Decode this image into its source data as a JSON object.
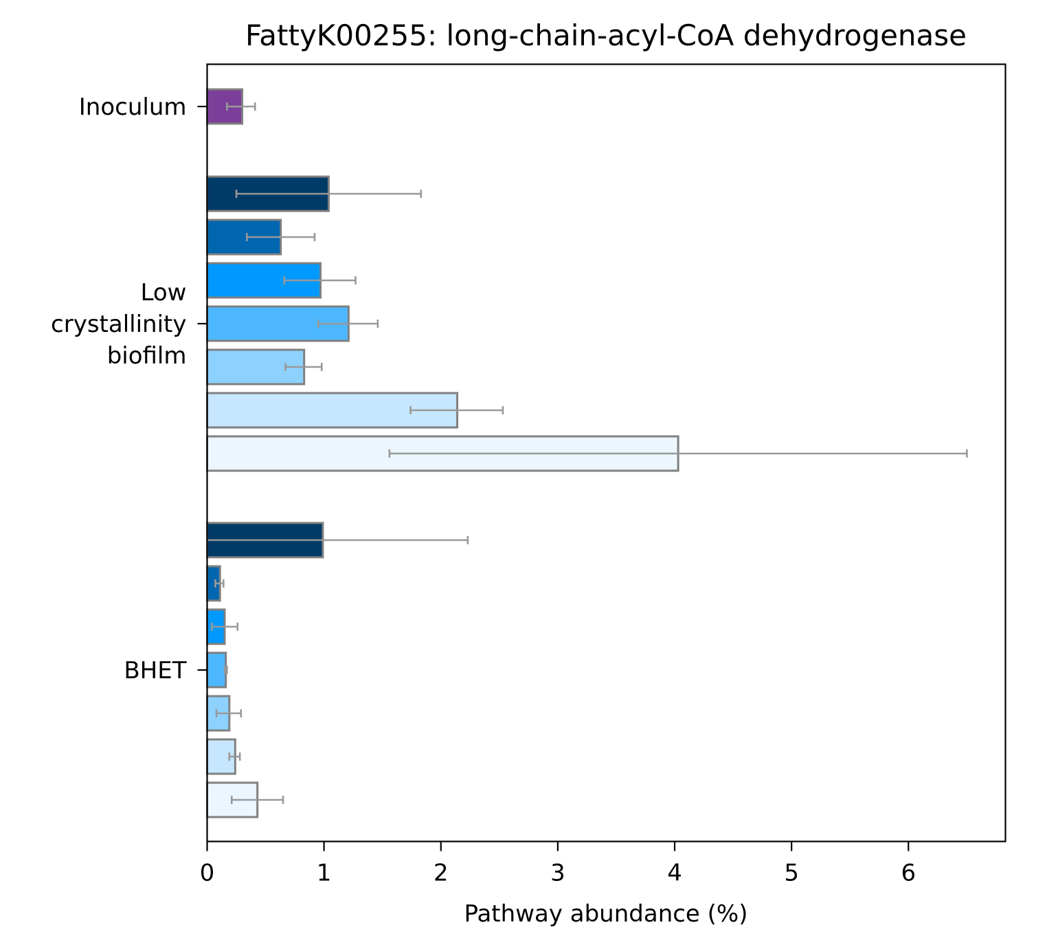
{
  "chart_data": {
    "type": "bar",
    "orientation": "horizontal",
    "title": "FattyK00255: long-chain-acyl-CoA dehydrogenase",
    "xlabel": "Pathway abundance (%)",
    "ylabel": "",
    "xlim": [
      0,
      6.83
    ],
    "xticks": [
      "0",
      "1",
      "2",
      "3",
      "4",
      "5",
      "6"
    ],
    "grid": false,
    "groups": [
      {
        "label": "Inoculum",
        "label_lines": [
          "Inoculum"
        ],
        "bars": [
          {
            "value": 0.3,
            "err_low": 0.17,
            "err_high": 0.41,
            "color": "#7b3f9a"
          }
        ]
      },
      {
        "label": "Low crystallinity biofilm",
        "label_lines": [
          "Low",
          "crystallinity",
          "biofilm"
        ],
        "bars": [
          {
            "value": 1.04,
            "err_low": 0.25,
            "err_high": 1.83,
            "color": "#003a66"
          },
          {
            "value": 0.63,
            "err_low": 0.34,
            "err_high": 0.92,
            "color": "#0066b0"
          },
          {
            "value": 0.97,
            "err_low": 0.66,
            "err_high": 1.27,
            "color": "#0099ff"
          },
          {
            "value": 1.21,
            "err_low": 0.95,
            "err_high": 1.46,
            "color": "#4db8ff"
          },
          {
            "value": 0.83,
            "err_low": 0.67,
            "err_high": 0.98,
            "color": "#8dd1ff"
          },
          {
            "value": 2.14,
            "err_low": 1.74,
            "err_high": 2.53,
            "color": "#c6e7ff"
          },
          {
            "value": 4.03,
            "err_low": 1.56,
            "err_high": 6.5,
            "color": "#ebf6ff"
          }
        ]
      },
      {
        "label": "BHET",
        "label_lines": [
          "BHET"
        ],
        "bars": [
          {
            "value": 0.99,
            "err_low": 0.0,
            "err_high": 2.23,
            "color": "#003a66"
          },
          {
            "value": 0.11,
            "err_low": 0.07,
            "err_high": 0.14,
            "color": "#0066b0"
          },
          {
            "value": 0.15,
            "err_low": 0.04,
            "err_high": 0.26,
            "color": "#0099ff"
          },
          {
            "value": 0.16,
            "err_low": 0.15,
            "err_high": 0.17,
            "color": "#4db8ff"
          },
          {
            "value": 0.19,
            "err_low": 0.08,
            "err_high": 0.29,
            "color": "#8dd1ff"
          },
          {
            "value": 0.24,
            "err_low": 0.19,
            "err_high": 0.28,
            "color": "#c6e7ff"
          },
          {
            "value": 0.43,
            "err_low": 0.21,
            "err_high": 0.65,
            "color": "#ebf6ff"
          }
        ]
      }
    ],
    "bar_edge_color": "#808080",
    "errorbar_color": "#999999"
  }
}
